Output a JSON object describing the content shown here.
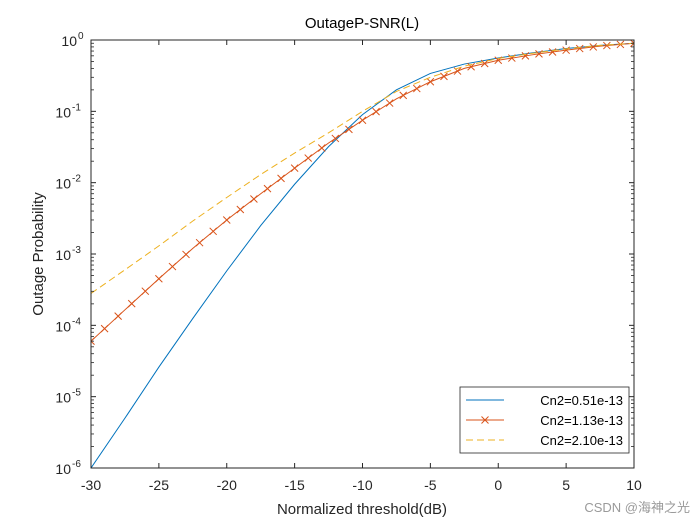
{
  "chart_data": {
    "type": "line",
    "title": "OutageP-SNR(L)",
    "xlabel": "Normalized threshold(dB)",
    "ylabel": "Outage Probability",
    "xlim": [
      -30,
      10
    ],
    "ylim": [
      1e-06,
      1
    ],
    "yscale": "log",
    "x_ticks": [
      -30,
      -25,
      -20,
      -15,
      -10,
      -5,
      0,
      5,
      10
    ],
    "x_tick_labels": [
      "-30",
      "-25",
      "-20",
      "-15",
      "-10",
      "-5",
      "0",
      "5",
      "10"
    ],
    "y_ticks": [
      {
        "value": 1e-06,
        "base": "10",
        "exp": "-6"
      },
      {
        "value": 1e-05,
        "base": "10",
        "exp": "-5"
      },
      {
        "value": 0.0001,
        "base": "10",
        "exp": "-4"
      },
      {
        "value": 0.001,
        "base": "10",
        "exp": "-3"
      },
      {
        "value": 0.01,
        "base": "10",
        "exp": "-2"
      },
      {
        "value": 0.1,
        "base": "10",
        "exp": "-1"
      },
      {
        "value": 1,
        "base": "10",
        "exp": "0"
      }
    ],
    "legend_position": "bottom-right",
    "series": [
      {
        "name": "Cn2=0.51e-13",
        "color": "#0072BD",
        "style": "solid",
        "marker": "none",
        "x": [
          -30,
          -27.5,
          -25,
          -22.5,
          -20,
          -17.5,
          -15,
          -12.5,
          -10,
          -7.5,
          -5,
          -2.5,
          0,
          2.5,
          5,
          7.5,
          10
        ],
        "y": [
          1e-06,
          5e-06,
          2.6e-05,
          0.000125,
          0.00058,
          0.0025,
          0.0095,
          0.032,
          0.09,
          0.2,
          0.34,
          0.46,
          0.56,
          0.66,
          0.76,
          0.84,
          0.9
        ]
      },
      {
        "name": "Cn2=1.13e-13",
        "color": "#D95319",
        "style": "solid",
        "marker": "x",
        "x": [
          -30,
          -27.5,
          -25,
          -22.5,
          -20,
          -17.5,
          -15,
          -12.5,
          -10,
          -7.5,
          -5,
          -2.5,
          0,
          2.5,
          5,
          7.5,
          10
        ],
        "y": [
          6e-05,
          0.000165,
          0.00045,
          0.0012,
          0.003,
          0.007,
          0.016,
          0.036,
          0.075,
          0.15,
          0.26,
          0.4,
          0.52,
          0.62,
          0.72,
          0.82,
          0.9
        ]
      },
      {
        "name": "Cn2=2.10e-13",
        "color": "#EDB120",
        "style": "dashed",
        "marker": "none",
        "x": [
          -30,
          -27.5,
          -25,
          -22.5,
          -20,
          -17.5,
          -15,
          -12.5,
          -10,
          -7.5,
          -5,
          -2.5,
          0,
          2.5,
          5,
          7.5,
          10
        ],
        "y": [
          0.00028,
          0.0006,
          0.0013,
          0.0029,
          0.0062,
          0.013,
          0.026,
          0.05,
          0.1,
          0.19,
          0.3,
          0.43,
          0.55,
          0.65,
          0.75,
          0.84,
          0.9
        ]
      }
    ]
  },
  "watermark": "CSDN @海神之光"
}
